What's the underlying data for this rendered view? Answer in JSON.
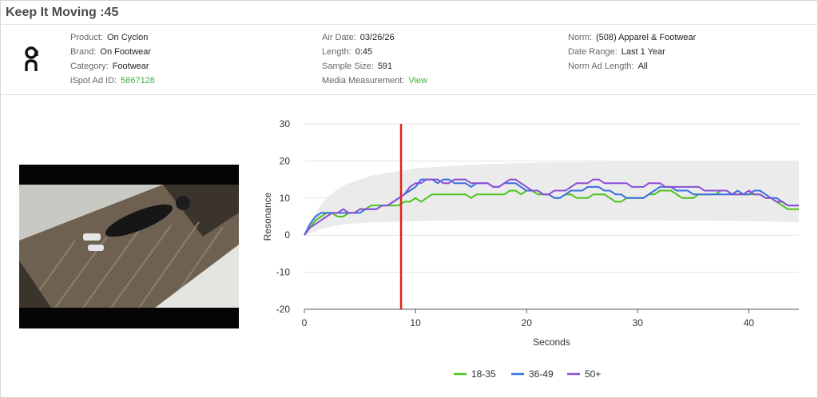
{
  "title": "Keep It Moving :45",
  "info": {
    "col1": [
      {
        "label": "Product:",
        "value": "On Cyclon"
      },
      {
        "label": "Brand:",
        "value": "On Footwear"
      },
      {
        "label": "Category:",
        "value": "Footwear"
      },
      {
        "label": "iSpot Ad ID:",
        "value": "5867128",
        "link": true
      }
    ],
    "col2": [
      {
        "label": "Air Date:",
        "value": "03/26/26"
      },
      {
        "label": "Length:",
        "value": "0:45"
      },
      {
        "label": "Sample Size:",
        "value": "591"
      },
      {
        "label": "Media Measurement:",
        "value": "View",
        "link": true
      }
    ],
    "col3": [
      {
        "label": "Norm:",
        "value": "(508) Apparel & Footwear"
      },
      {
        "label": "Date Range:",
        "value": "Last 1 Year"
      },
      {
        "label": "Norm Ad Length:",
        "value": "All"
      }
    ]
  },
  "colors": {
    "link": "#3cb043",
    "grid": "#e3e3e3",
    "band": "#ebebeb",
    "marker": "#e0231c"
  },
  "chart_data": {
    "type": "line",
    "xlabel": "Seconds",
    "ylabel": "Resonance",
    "xlim": [
      0,
      44.5
    ],
    "ylim": [
      -20,
      30
    ],
    "xticks": [
      0,
      10,
      20,
      30,
      40
    ],
    "yticks": [
      -20,
      -10,
      0,
      10,
      20,
      30
    ],
    "grid": "horizontal",
    "legend_position": "bottom",
    "marker_x": 8.7,
    "norm_band": {
      "x": [
        0,
        1,
        2,
        3,
        4,
        6,
        8,
        10,
        15,
        20,
        30,
        40,
        44.5
      ],
      "upper": [
        0,
        6,
        10,
        12.5,
        14,
        16,
        17,
        18,
        19,
        19.5,
        20,
        20,
        20
      ],
      "lower": [
        0,
        1,
        2,
        2.6,
        3,
        3.4,
        3.6,
        3.8,
        4,
        4,
        4,
        3.8,
        3.5
      ]
    },
    "series": [
      {
        "name": "18-35",
        "color": "#4cc21d",
        "x": [
          0,
          0.5,
          1,
          1.5,
          2,
          2.5,
          3,
          3.5,
          4,
          4.5,
          5,
          5.5,
          6,
          6.5,
          7,
          7.5,
          8,
          8.5,
          9,
          9.5,
          10,
          10.5,
          11,
          11.5,
          12,
          12.5,
          13,
          13.5,
          14,
          14.5,
          15,
          15.5,
          16,
          16.5,
          17,
          17.5,
          18,
          18.5,
          19,
          19.5,
          20,
          20.5,
          21,
          21.5,
          22,
          22.5,
          23,
          23.5,
          24,
          24.5,
          25,
          25.5,
          26,
          26.5,
          27,
          27.5,
          28,
          28.5,
          29,
          29.5,
          30,
          30.5,
          31,
          31.5,
          32,
          32.5,
          33,
          33.5,
          34,
          34.5,
          35,
          35.5,
          36,
          36.5,
          37,
          37.5,
          38,
          38.5,
          39,
          39.5,
          40,
          40.5,
          41,
          41.5,
          42,
          42.5,
          43,
          43.5,
          44,
          44.5
        ],
        "values": [
          0,
          2,
          4,
          5,
          6,
          6,
          5,
          5,
          6,
          6,
          7,
          7,
          8,
          8,
          8,
          8,
          8,
          8,
          9,
          9,
          10,
          9,
          10,
          11,
          11,
          11,
          11,
          11,
          11,
          11,
          10,
          11,
          11,
          11,
          11,
          11,
          11,
          12,
          12,
          11,
          12,
          12,
          11,
          11,
          11,
          10,
          10,
          11,
          11,
          10,
          10,
          10,
          11,
          11,
          11,
          10,
          9,
          9,
          10,
          10,
          10,
          10,
          11,
          11,
          12,
          12,
          12,
          11,
          10,
          10,
          10,
          11,
          11,
          11,
          11,
          12,
          12,
          11,
          11,
          11,
          11,
          11,
          11,
          10,
          10,
          9,
          8,
          7,
          7,
          7
        ]
      },
      {
        "name": "36-49",
        "color": "#3b6fe0",
        "x": [
          0,
          0.5,
          1,
          1.5,
          2,
          2.5,
          3,
          3.5,
          4,
          4.5,
          5,
          5.5,
          6,
          6.5,
          7,
          7.5,
          8,
          8.5,
          9,
          9.5,
          10,
          10.5,
          11,
          11.5,
          12,
          12.5,
          13,
          13.5,
          14,
          14.5,
          15,
          15.5,
          16,
          16.5,
          17,
          17.5,
          18,
          18.5,
          19,
          19.5,
          20,
          20.5,
          21,
          21.5,
          22,
          22.5,
          23,
          23.5,
          24,
          24.5,
          25,
          25.5,
          26,
          26.5,
          27,
          27.5,
          28,
          28.5,
          29,
          29.5,
          30,
          30.5,
          31,
          31.5,
          32,
          32.5,
          33,
          33.5,
          34,
          34.5,
          35,
          35.5,
          36,
          36.5,
          37,
          37.5,
          38,
          38.5,
          39,
          39.5,
          40,
          40.5,
          41,
          41.5,
          42,
          42.5,
          43,
          43.5,
          44,
          44.5
        ],
        "values": [
          0,
          3,
          5,
          6,
          6,
          6,
          6,
          6,
          6,
          6,
          6,
          7,
          7,
          7,
          8,
          8,
          9,
          10,
          11,
          12,
          13,
          15,
          15,
          15,
          14,
          15,
          15,
          14,
          14,
          14,
          13,
          14,
          14,
          14,
          13,
          13,
          14,
          14,
          14,
          13,
          12,
          12,
          12,
          11,
          11,
          10,
          10,
          11,
          12,
          12,
          12,
          13,
          13,
          13,
          12,
          12,
          11,
          11,
          10,
          10,
          10,
          10,
          11,
          12,
          13,
          13,
          13,
          12,
          12,
          12,
          11,
          11,
          11,
          11,
          11,
          11,
          11,
          11,
          12,
          11,
          11,
          12,
          12,
          11,
          10,
          10,
          9,
          8,
          8,
          8
        ]
      },
      {
        "name": "50+",
        "color": "#8a4fd6",
        "x": [
          0,
          0.5,
          1,
          1.5,
          2,
          2.5,
          3,
          3.5,
          4,
          4.5,
          5,
          5.5,
          6,
          6.5,
          7,
          7.5,
          8,
          8.5,
          9,
          9.5,
          10,
          10.5,
          11,
          11.5,
          12,
          12.5,
          13,
          13.5,
          14,
          14.5,
          15,
          15.5,
          16,
          16.5,
          17,
          17.5,
          18,
          18.5,
          19,
          19.5,
          20,
          20.5,
          21,
          21.5,
          22,
          22.5,
          23,
          23.5,
          24,
          24.5,
          25,
          25.5,
          26,
          26.5,
          27,
          27.5,
          28,
          28.5,
          29,
          29.5,
          30,
          30.5,
          31,
          31.5,
          32,
          32.5,
          33,
          33.5,
          34,
          34.5,
          35,
          35.5,
          36,
          36.5,
          37,
          37.5,
          38,
          38.5,
          39,
          39.5,
          40,
          40.5,
          41,
          41.5,
          42,
          42.5,
          43,
          43.5,
          44,
          44.5
        ],
        "values": [
          0,
          2,
          3,
          4,
          5,
          6,
          6,
          7,
          6,
          6,
          7,
          7,
          7,
          7,
          8,
          8,
          9,
          10,
          11,
          13,
          14,
          14,
          15,
          15,
          15,
          14,
          14,
          15,
          15,
          15,
          14,
          14,
          14,
          14,
          13,
          13,
          14,
          15,
          15,
          14,
          13,
          12,
          12,
          11,
          11,
          12,
          12,
          12,
          13,
          14,
          14,
          14,
          15,
          15,
          14,
          14,
          14,
          14,
          14,
          13,
          13,
          13,
          14,
          14,
          14,
          13,
          13,
          13,
          13,
          13,
          13,
          13,
          12,
          12,
          12,
          12,
          12,
          11,
          11,
          11,
          12,
          11,
          11,
          10,
          10,
          9,
          9,
          8,
          8,
          8
        ]
      }
    ]
  }
}
